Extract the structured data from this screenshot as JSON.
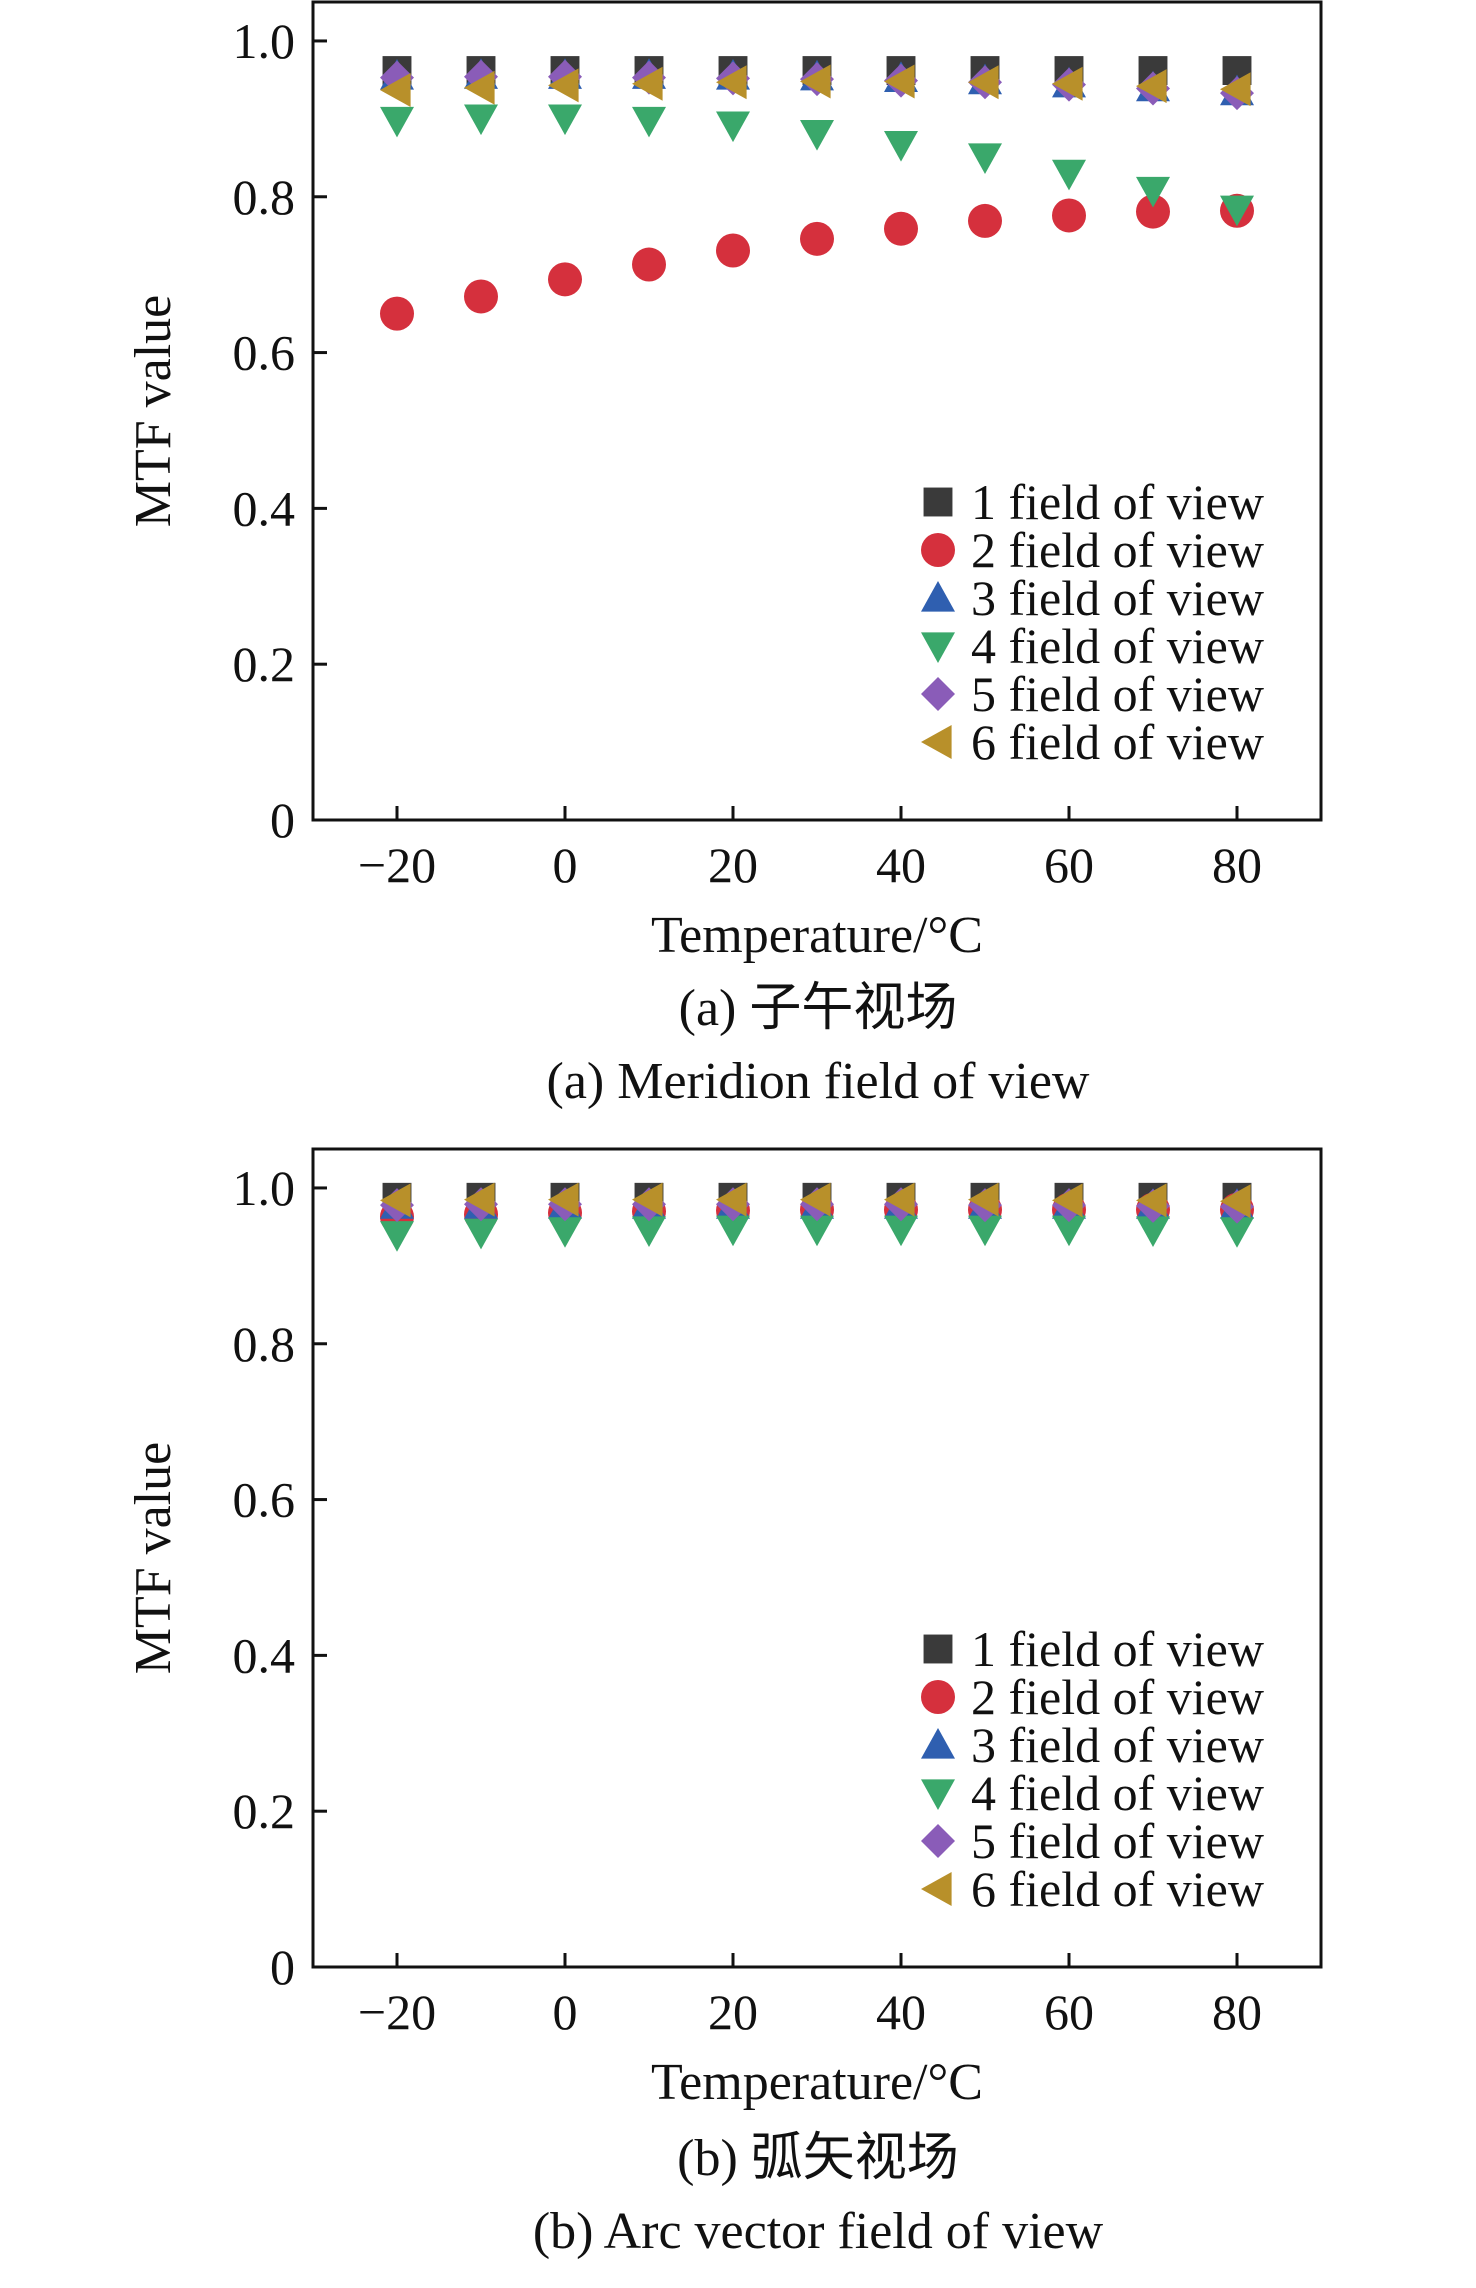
{
  "figure": {
    "panels": [
      {
        "caption_cn": "(a) 子午视场",
        "caption_en": "(a) Meridion field of view"
      },
      {
        "caption_cn": "(b) 弧矢视场",
        "caption_en": "(b) Arc vector field of view"
      }
    ]
  },
  "chart_data": [
    {
      "type": "scatter",
      "title": "",
      "xlabel": "Temperature/°C",
      "ylabel": "MTF value",
      "xlim": [
        -30,
        90
      ],
      "ylim": [
        0,
        1.05
      ],
      "x_ticks": [
        "−20",
        "0",
        "20",
        "40",
        "60",
        "80"
      ],
      "y_ticks": [
        "0",
        "0.2",
        "0.4",
        "0.6",
        "0.8",
        "1.0"
      ],
      "legend_position": "bottom-right",
      "grid": false,
      "x": [
        -20,
        -10,
        0,
        10,
        20,
        30,
        40,
        50,
        60,
        70,
        80
      ],
      "series": [
        {
          "name": "1 field of view",
          "marker": "square",
          "color": "#3a3a3a",
          "values": [
            0.962,
            0.962,
            0.962,
            0.962,
            0.962,
            0.962,
            0.962,
            0.962,
            0.962,
            0.962,
            0.962
          ]
        },
        {
          "name": "2 field of view",
          "marker": "circle",
          "color": "#d5303d",
          "values": [
            0.65,
            0.672,
            0.694,
            0.713,
            0.731,
            0.746,
            0.759,
            0.769,
            0.776,
            0.781,
            0.782
          ]
        },
        {
          "name": "3 field of view",
          "marker": "triangle-up",
          "color": "#2f5fb0",
          "values": [
            0.955,
            0.956,
            0.956,
            0.956,
            0.955,
            0.954,
            0.952,
            0.949,
            0.945,
            0.94,
            0.935
          ]
        },
        {
          "name": "4 field of view",
          "marker": "triangle-down",
          "color": "#3aa86b",
          "values": [
            0.898,
            0.901,
            0.901,
            0.898,
            0.892,
            0.881,
            0.867,
            0.851,
            0.83,
            0.808,
            0.784
          ]
        },
        {
          "name": "5 field of view",
          "marker": "diamond",
          "color": "#8a5cb8",
          "values": [
            0.953,
            0.954,
            0.954,
            0.953,
            0.952,
            0.951,
            0.949,
            0.947,
            0.944,
            0.939,
            0.933
          ]
        },
        {
          "name": "6 field of view",
          "marker": "triangle-left",
          "color": "#b8902a",
          "values": [
            0.937,
            0.94,
            0.943,
            0.945,
            0.947,
            0.948,
            0.948,
            0.947,
            0.945,
            0.942,
            0.938
          ]
        }
      ]
    },
    {
      "type": "scatter",
      "title": "",
      "xlabel": "Temperature/°C",
      "ylabel": "MTF value",
      "xlim": [
        -30,
        90
      ],
      "ylim": [
        0,
        1.05
      ],
      "x_ticks": [
        "−20",
        "0",
        "20",
        "40",
        "60",
        "80"
      ],
      "y_ticks": [
        "0",
        "0.2",
        "0.4",
        "0.6",
        "0.8",
        "1.0"
      ],
      "legend_position": "bottom-right",
      "grid": false,
      "x": [
        -20,
        -10,
        0,
        10,
        20,
        30,
        40,
        50,
        60,
        70,
        80
      ],
      "series": [
        {
          "name": "1 field of view",
          "marker": "square",
          "color": "#3a3a3a",
          "values": [
            0.988,
            0.988,
            0.988,
            0.988,
            0.988,
            0.988,
            0.988,
            0.988,
            0.988,
            0.988,
            0.988
          ]
        },
        {
          "name": "2 field of view",
          "marker": "circle",
          "color": "#d5303d",
          "values": [
            0.963,
            0.966,
            0.968,
            0.97,
            0.971,
            0.972,
            0.972,
            0.972,
            0.972,
            0.972,
            0.972
          ]
        },
        {
          "name": "3 field of view",
          "marker": "triangle-up",
          "color": "#2f5fb0",
          "values": [
            0.978,
            0.978,
            0.978,
            0.978,
            0.978,
            0.978,
            0.978,
            0.978,
            0.978,
            0.978,
            0.978
          ]
        },
        {
          "name": "4 field of view",
          "marker": "triangle-down",
          "color": "#3aa86b",
          "values": [
            0.94,
            0.943,
            0.945,
            0.946,
            0.947,
            0.947,
            0.947,
            0.947,
            0.947,
            0.946,
            0.945
          ]
        },
        {
          "name": "5 field of view",
          "marker": "diamond",
          "color": "#8a5cb8",
          "values": [
            0.978,
            0.979,
            0.979,
            0.979,
            0.979,
            0.979,
            0.979,
            0.978,
            0.978,
            0.977,
            0.976
          ]
        },
        {
          "name": "6 field of view",
          "marker": "triangle-left",
          "color": "#b8902a",
          "values": [
            0.984,
            0.985,
            0.985,
            0.985,
            0.985,
            0.985,
            0.985,
            0.985,
            0.984,
            0.984,
            0.983
          ]
        }
      ]
    }
  ]
}
